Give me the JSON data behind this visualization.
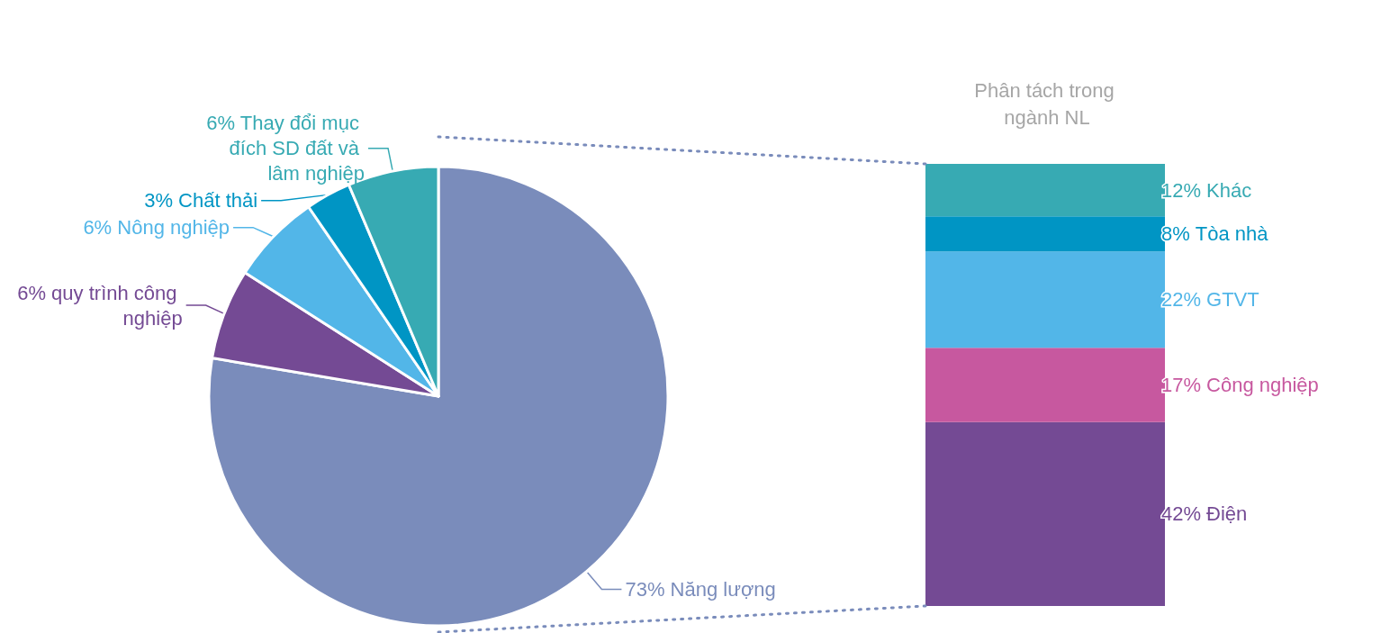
{
  "chart_data": [
    {
      "type": "pie",
      "categories": [
        "Năng lượng",
        "quy trình công nghiệp",
        "Nông nghiệp",
        "Chất thải",
        "Thay đổi mục đích SD đất và lâm nghiệp"
      ],
      "values": [
        73,
        6,
        6,
        3,
        6
      ],
      "value_labels": [
        "73%",
        "6%",
        "6%",
        "3%",
        "6%"
      ],
      "colors": [
        "#7a8cbb",
        "#744a94",
        "#52b6e8",
        "#0095c4",
        "#37aab3"
      ],
      "legend": false
    },
    {
      "type": "bar",
      "title": "Phân tách trong ngành NL",
      "stacked": true,
      "categories": [
        null
      ],
      "legend": false,
      "data_labels": true,
      "series": [
        {
          "name": "Điện",
          "color": "#744a94",
          "values": [
            42
          ],
          "value_labels": [
            "42%"
          ]
        },
        {
          "name": "Công nghiệp",
          "color": "#c7589f",
          "values": [
            17
          ],
          "value_labels": [
            "17%"
          ]
        },
        {
          "name": "GTVT",
          "color": "#52b6e8",
          "values": [
            22
          ],
          "value_labels": [
            "22%"
          ]
        },
        {
          "name": "Tòa nhà",
          "color": "#0095c4",
          "values": [
            8
          ],
          "value_labels": [
            "8%"
          ]
        },
        {
          "name": "Khác",
          "color": "#37aab3",
          "values": [
            12
          ],
          "value_labels": [
            "12%"
          ]
        }
      ]
    }
  ]
}
